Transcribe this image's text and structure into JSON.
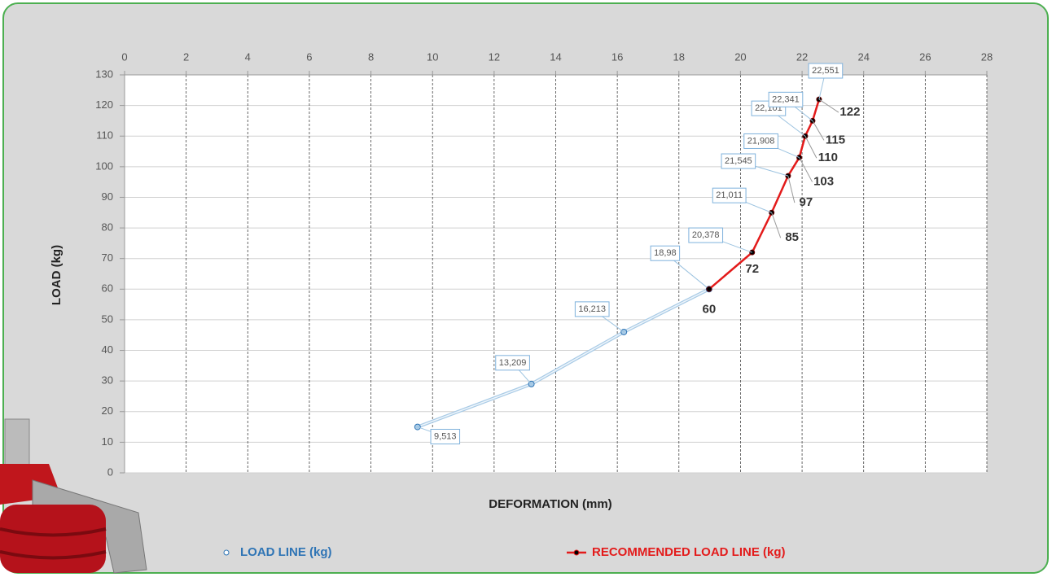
{
  "chart_data": {
    "type": "line",
    "x_label": "DEFORMATION (mm)",
    "y_label": "LOAD (kg)",
    "xlim": [
      0,
      28
    ],
    "xticks": [
      0,
      2,
      4,
      6,
      8,
      10,
      12,
      14,
      16,
      18,
      20,
      22,
      24,
      26,
      28
    ],
    "ylim": [
      0,
      130
    ],
    "yticks": [
      0,
      10,
      20,
      30,
      40,
      50,
      60,
      70,
      80,
      90,
      100,
      110,
      120,
      130
    ],
    "grid": true,
    "series": [
      {
        "name": "LOAD LINE (kg)",
        "color": "#2e74b5",
        "x": [
          9.513,
          13.209,
          16.213,
          18.98
        ],
        "x_labels": [
          "9,513",
          "13,209",
          "16,213",
          "18,98"
        ],
        "values": [
          15,
          29,
          46,
          60
        ]
      },
      {
        "name": "RECOMMENDED LOAD LINE (kg)",
        "color": "#e31b1b",
        "x": [
          18.98,
          20.378,
          21.011,
          21.545,
          21.908,
          22.101,
          22.341,
          22.551
        ],
        "x_labels": [
          null,
          "20,378",
          "21,011",
          "21,545",
          "21,908",
          "22,101",
          "22,341",
          "22,551"
        ],
        "values": [
          60,
          72,
          85,
          97,
          103,
          110,
          115,
          122
        ]
      }
    ]
  }
}
